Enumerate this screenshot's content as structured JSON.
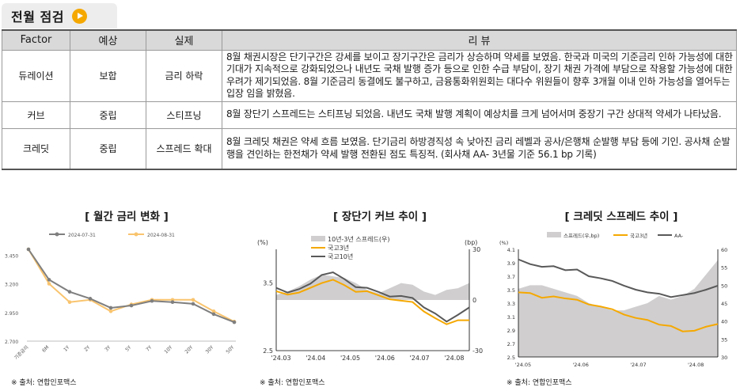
{
  "header": {
    "title": "전월 점검"
  },
  "table": {
    "columns": [
      "Factor",
      "예상",
      "실제",
      "리 뷰"
    ],
    "rows": [
      {
        "factor": "듀레이션",
        "expected": "보합",
        "actual": "금리 하락",
        "review": "8월 채권시장은 단기구간은 강세를 보이고 장기구간은 금리가 상승하며 약세를 보였음. 한국과 미국의 기준금리 인하 가능성에 대한 기대가 지속적으로 강화되었으나 내년도 국채 발행 증가 등으로 인한 수급 부담이, 장기 채권 가격에 부담으로 작용할 가능성에 대한 우려가 제기되었음. 8월 기준금리 동결에도 불구하고, 금융통화위원회는 대다수 위원들이 향후 3개월 이내 인하 가능성을 열어두는 입장 임을 밝혔음."
      },
      {
        "factor": "커브",
        "expected": "중립",
        "actual": "스티프닝",
        "review": "8월 장단기 스프레드는 스티프닝 되었음. 내년도 국채 발행 계획이 예상치를 크게 넘어서며 중장기 구간 상대적 약세가 나타났음."
      },
      {
        "factor": "크레딧",
        "expected": "중립",
        "actual": "스프레드 확대",
        "review": "8월 크레딧 채권은 약세 흐름 보였음. 단기금리 하방경직성 속 낮아진 금리 레벨과 공사/은행채 순발행 부담 등에 기인. 공사채 순발행을 견인하는 한전채가 약세 발행 전환된 점도 특징적. (회사채 AA- 3년물 기준 56.1 bp 기록)"
      }
    ]
  },
  "charts": {
    "c1_title": "[ 월간 금리 변화 ]",
    "c2_title": "[ 장단기 커브 추이 ]",
    "c3_title": "[ 크레딧 스프레드 추이 ]",
    "source": "※ 출처: 연합인포맥스"
  },
  "chart_data": [
    {
      "type": "line",
      "title": "[ 월간 금리 변화 ]",
      "categories": [
        "기준금리",
        "6M",
        "1Y",
        "2Y",
        "3Y",
        "5Y",
        "7Y",
        "10Y",
        "20Y",
        "30Y",
        "50Y"
      ],
      "series": [
        {
          "name": "2024-07-31",
          "color": "#7f7f7f",
          "values": [
            3.5,
            3.235,
            3.13,
            3.07,
            2.99,
            3.01,
            3.05,
            3.04,
            3.025,
            2.935,
            2.865
          ]
        },
        {
          "name": "2024-08-31",
          "color": "#f9c46e",
          "values": [
            3.5,
            3.2,
            3.04,
            3.06,
            2.96,
            3.02,
            3.06,
            3.06,
            3.06,
            2.96,
            2.87
          ]
        }
      ],
      "yticks": [
        "2.700",
        "2.950",
        "3.200",
        "3.450"
      ],
      "ylim": [
        2.7,
        3.5
      ]
    },
    {
      "type": "line",
      "title": "[ 장단기 커브 추이 ]",
      "ylabel_left": "(%)",
      "ylabel_right": "(bp)",
      "left_ticks": [
        "3.5",
        "2.5"
      ],
      "right_ticks": [
        "30",
        "0",
        "-30"
      ],
      "x_ticks": [
        "'24.03",
        "'24.04",
        "'24.05",
        "'24.06",
        "'24.07",
        "'24.08"
      ],
      "series": [
        {
          "name": "10년-3년 스프레드(우)",
          "type": "area",
          "color": "#d0cece",
          "values": [
            3,
            5,
            8,
            12,
            15,
            14,
            13,
            10,
            6,
            4,
            7,
            10,
            9,
            5,
            3,
            6,
            7,
            10
          ]
        },
        {
          "name": "국고3년",
          "color": "#f5a800",
          "values": [
            3.38,
            3.33,
            3.36,
            3.43,
            3.5,
            3.55,
            3.47,
            3.37,
            3.38,
            3.32,
            3.26,
            3.24,
            3.22,
            3.08,
            2.98,
            2.89,
            2.95,
            2.95
          ]
        },
        {
          "name": "국고10년",
          "color": "#595959",
          "values": [
            3.43,
            3.36,
            3.41,
            3.49,
            3.62,
            3.66,
            3.56,
            3.44,
            3.43,
            3.37,
            3.3,
            3.31,
            3.28,
            3.14,
            3.05,
            2.93,
            3.03,
            3.14
          ]
        }
      ],
      "ylim_left": [
        2.5,
        4.0
      ],
      "ylim_right": [
        -30,
        30
      ]
    },
    {
      "type": "line",
      "title": "[ 크레딧 스프레드 추이 ]",
      "ylabel_left": "(%)",
      "left_ticks": [
        "4.1",
        "3.9",
        "3.7",
        "3.5",
        "3.3",
        "3.1",
        "2.9",
        "2.7",
        "2.5"
      ],
      "right_ticks": [
        "60",
        "55",
        "50",
        "45",
        "40",
        "35",
        "30"
      ],
      "x_ticks": [
        "'24.05",
        "'24.06",
        "'24.07",
        "'24.08"
      ],
      "series": [
        {
          "name": "스프레드(우,bp)",
          "type": "area",
          "color": "#d0cece",
          "values": [
            49,
            50,
            50,
            49,
            48,
            47,
            45,
            44,
            43,
            43,
            44,
            45,
            47,
            46,
            47,
            49,
            53,
            57
          ]
        },
        {
          "name": "국고3년",
          "color": "#f5a800",
          "values": [
            3.46,
            3.45,
            3.38,
            3.4,
            3.37,
            3.35,
            3.28,
            3.25,
            3.21,
            3.13,
            3.08,
            3.05,
            2.98,
            2.96,
            2.88,
            2.89,
            2.95,
            2.99
          ]
        },
        {
          "name": "AA-",
          "color": "#595959",
          "values": [
            3.95,
            3.88,
            3.84,
            3.85,
            3.79,
            3.8,
            3.7,
            3.67,
            3.63,
            3.56,
            3.5,
            3.46,
            3.44,
            3.39,
            3.42,
            3.45,
            3.5,
            3.56
          ]
        }
      ],
      "ylim_left": [
        2.5,
        4.1
      ],
      "ylim_right": [
        30,
        60
      ]
    }
  ],
  "colors": {
    "accent": "#f5a800",
    "gray_series": "#7f7f7f",
    "area": "#d0cece"
  }
}
